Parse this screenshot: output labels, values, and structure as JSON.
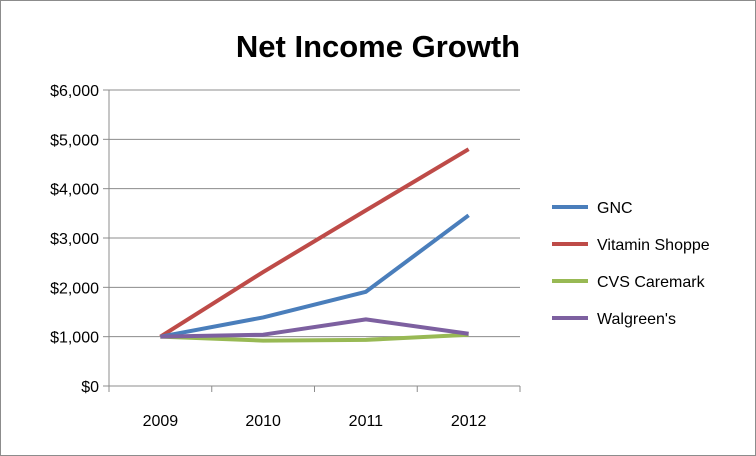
{
  "chart_data": {
    "type": "line",
    "title": "Net Income Growth",
    "xlabel": "",
    "ylabel": "",
    "categories": [
      "2009",
      "2010",
      "2011",
      "2012"
    ],
    "ylim": [
      0,
      6000
    ],
    "y_ticks": [
      0,
      1000,
      2000,
      3000,
      4000,
      5000,
      6000
    ],
    "y_tick_labels": [
      "$0",
      "$1,000",
      "$2,000",
      "$3,000",
      "$4,000",
      "$5,000",
      "$6,000"
    ],
    "grid": true,
    "legend_position": "right",
    "series": [
      {
        "name": "GNC",
        "color": "#4a7ebb",
        "values": [
          1000,
          1390,
          1910,
          3460
        ]
      },
      {
        "name": "Vitamin Shoppe",
        "color": "#be4b48",
        "values": [
          1000,
          2310,
          3560,
          4800
        ]
      },
      {
        "name": "CVS Caremark",
        "color": "#98b954",
        "values": [
          1000,
          920,
          935,
          1040
        ]
      },
      {
        "name": "Walgreen's",
        "color": "#7d60a0",
        "values": [
          1000,
          1040,
          1350,
          1060
        ]
      }
    ]
  }
}
